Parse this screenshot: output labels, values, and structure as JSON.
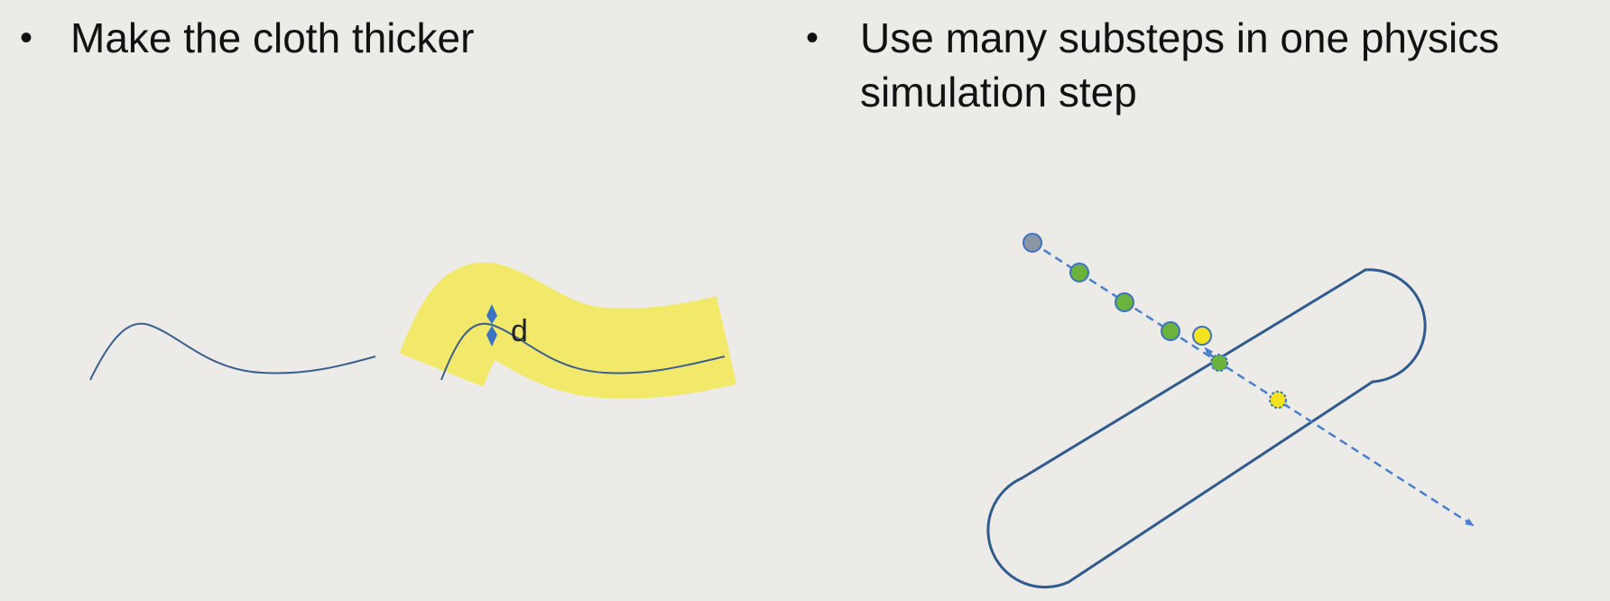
{
  "left_panel": {
    "bullet": "•",
    "heading": "Make the cloth thicker",
    "thickness_label": "d"
  },
  "right_panel": {
    "bullet": "•",
    "heading": "Use many substeps in one physics simulation step"
  },
  "colors": {
    "background": "#ecebe7",
    "cloth_line": "#3b5f8f",
    "thick_band": "#f2e96b",
    "marker": "#3a72c4",
    "obstacle": "#2f5b8e",
    "trajectory": "#4a7fcc",
    "start_point": "#8c95a3",
    "substep_point": "#6cb33e",
    "collision_point": "#f3e21d"
  }
}
